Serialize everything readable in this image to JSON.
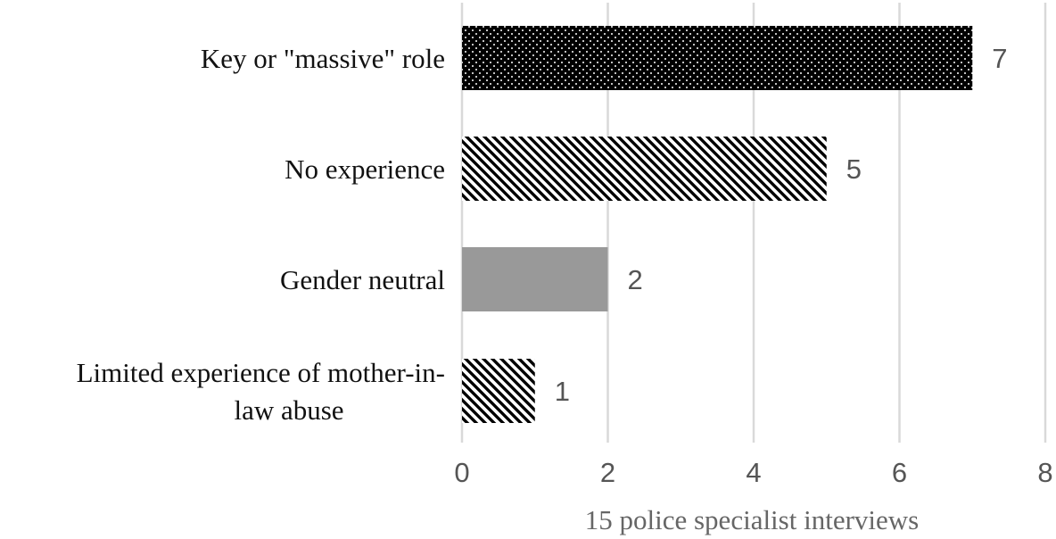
{
  "chart_data": {
    "type": "bar",
    "orientation": "horizontal",
    "categories": [
      [
        "Key or \"massive\" role"
      ],
      [
        "No experience"
      ],
      [
        "Gender neutral"
      ],
      [
        "Limited experience of mother-in-",
        "law abuse"
      ]
    ],
    "values": [
      7,
      5,
      2,
      1
    ],
    "bar_styles": [
      "dots",
      "diagonal-hatch",
      "solid-gray",
      "diagonal-hatch"
    ],
    "xlabel": "15 police specialist interviews",
    "xlim": [
      0,
      8
    ],
    "xticks": [
      0,
      2,
      4,
      6,
      8
    ],
    "grid": "vertical",
    "data_labels": true,
    "colors": {
      "dark": "#000000",
      "gray": "#999999",
      "grid": "#d9d9d9",
      "text": "#555555"
    }
  }
}
